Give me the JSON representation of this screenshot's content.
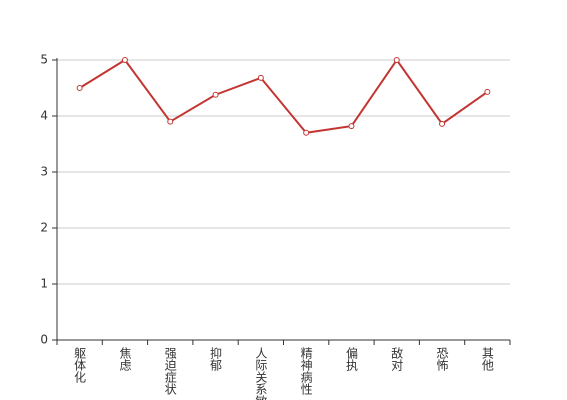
{
  "chart_data": {
    "type": "line",
    "categories": [
      "躯体化",
      "焦虑",
      "强迫症状",
      "抑郁",
      "人际关系敏感",
      "精神病性",
      "偏执",
      "敌对",
      "恐怖",
      "其他"
    ],
    "values": [
      4.5,
      5,
      3.9,
      4.38,
      4.68,
      3.7,
      3.82,
      5,
      3.86,
      4.43
    ],
    "color": "#c23531",
    "ylim": [
      0,
      5
    ],
    "yticks": [
      0,
      1,
      2,
      3,
      4,
      5
    ],
    "grid": true
  }
}
